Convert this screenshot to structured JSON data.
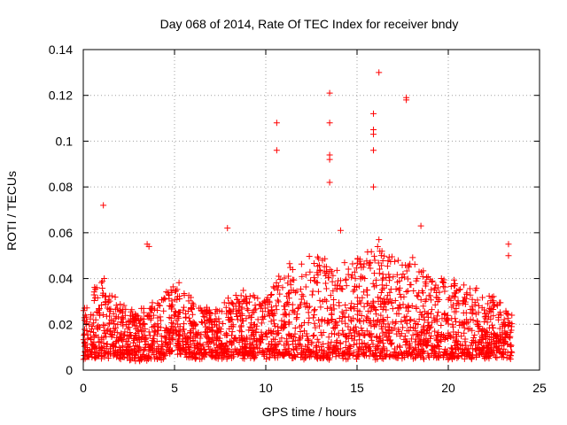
{
  "chart_data": {
    "type": "scatter",
    "title": "Day 068 of 2014, Rate Of TEC Index for receiver bndy",
    "xlabel": "GPS time / hours",
    "ylabel": "ROTI / TECUs",
    "xlim": [
      0,
      25
    ],
    "ylim": [
      0,
      0.14
    ],
    "x_ticks": [
      0,
      5,
      10,
      15,
      20,
      25
    ],
    "x_tick_labels": [
      "0",
      "5",
      "10",
      "15",
      "20",
      "25"
    ],
    "y_ticks": [
      0,
      0.02,
      0.04,
      0.06,
      0.08,
      0.1,
      0.12,
      0.14
    ],
    "y_tick_labels": [
      "0",
      "0.02",
      "0.04",
      "0.06",
      "0.08",
      "0.1",
      "0.12",
      "0.14"
    ],
    "grid": true,
    "marker": "+",
    "color": "#ff0000",
    "series": [
      {
        "name": "ROTI",
        "outliers": [
          {
            "x": 1.1,
            "y": 0.072
          },
          {
            "x": 3.5,
            "y": 0.055
          },
          {
            "x": 3.6,
            "y": 0.054
          },
          {
            "x": 7.9,
            "y": 0.062
          },
          {
            "x": 10.6,
            "y": 0.108
          },
          {
            "x": 10.6,
            "y": 0.096
          },
          {
            "x": 13.5,
            "y": 0.121
          },
          {
            "x": 13.5,
            "y": 0.108
          },
          {
            "x": 13.5,
            "y": 0.094
          },
          {
            "x": 13.5,
            "y": 0.092
          },
          {
            "x": 13.5,
            "y": 0.082
          },
          {
            "x": 14.1,
            "y": 0.061
          },
          {
            "x": 15.9,
            "y": 0.112
          },
          {
            "x": 15.9,
            "y": 0.105
          },
          {
            "x": 15.9,
            "y": 0.103
          },
          {
            "x": 15.9,
            "y": 0.096
          },
          {
            "x": 15.9,
            "y": 0.08
          },
          {
            "x": 16.2,
            "y": 0.13
          },
          {
            "x": 16.2,
            "y": 0.057
          },
          {
            "x": 17.7,
            "y": 0.119
          },
          {
            "x": 17.7,
            "y": 0.118
          },
          {
            "x": 18.5,
            "y": 0.063
          },
          {
            "x": 23.3,
            "y": 0.055
          },
          {
            "x": 23.3,
            "y": 0.05
          }
        ],
        "envelope_hours": [
          0,
          1,
          2,
          3,
          4,
          5,
          6,
          7,
          8,
          9,
          10,
          11,
          12,
          13,
          14,
          15,
          16,
          17,
          18,
          19,
          20,
          21,
          22,
          23,
          23.5
        ],
        "envelope_upper": [
          0.028,
          0.042,
          0.03,
          0.026,
          0.03,
          0.04,
          0.03,
          0.026,
          0.034,
          0.035,
          0.032,
          0.045,
          0.048,
          0.05,
          0.045,
          0.05,
          0.055,
          0.05,
          0.05,
          0.04,
          0.04,
          0.038,
          0.035,
          0.03,
          0.025
        ],
        "envelope_lower": [
          0.006,
          0.006,
          0.006,
          0.005,
          0.005,
          0.008,
          0.006,
          0.006,
          0.006,
          0.006,
          0.006,
          0.006,
          0.006,
          0.006,
          0.006,
          0.006,
          0.006,
          0.006,
          0.006,
          0.006,
          0.006,
          0.006,
          0.006,
          0.006,
          0.006
        ]
      }
    ]
  }
}
